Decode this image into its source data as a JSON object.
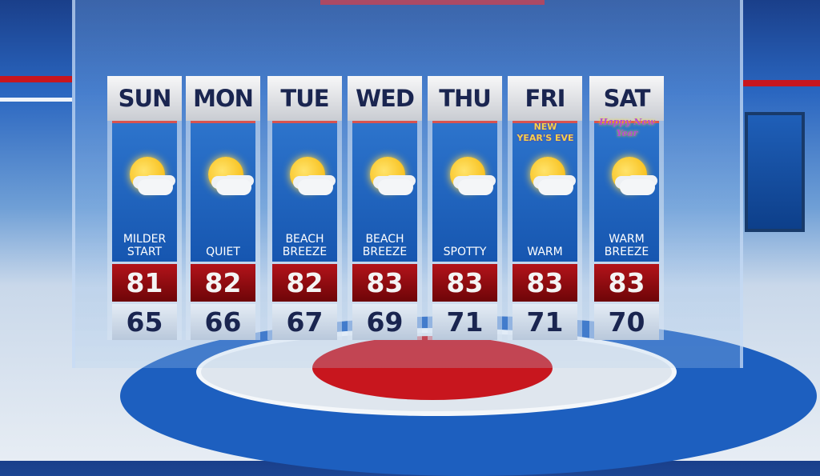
{
  "forecast": [
    {
      "day": "SUN",
      "desc1": "MILDER",
      "desc2": "START",
      "high": "81",
      "low": "65",
      "icon": "sun-cloud-icon",
      "badge": ""
    },
    {
      "day": "MON",
      "desc1": "",
      "desc2": "QUIET",
      "high": "82",
      "low": "66",
      "icon": "sun-cloud-icon",
      "badge": ""
    },
    {
      "day": "TUE",
      "desc1": "BEACH",
      "desc2": "BREEZE",
      "high": "82",
      "low": "67",
      "icon": "sun-cloud-icon",
      "badge": ""
    },
    {
      "day": "WED",
      "desc1": "BEACH",
      "desc2": "BREEZE",
      "high": "83",
      "low": "69",
      "icon": "sun-cloud-icon",
      "badge": ""
    },
    {
      "day": "THU",
      "desc1": "",
      "desc2": "SPOTTY",
      "high": "83",
      "low": "71",
      "icon": "sun-cloud-icon",
      "badge": ""
    },
    {
      "day": "FRI",
      "desc1": "",
      "desc2": "WARM",
      "high": "83",
      "low": "71",
      "icon": "sun-cloud-icon",
      "badge": "NEW YEAR'S EVE"
    },
    {
      "day": "SAT",
      "desc1": "WARM",
      "desc2": "BREEZE",
      "high": "83",
      "low": "70",
      "icon": "sun-cloud-icon",
      "badge": "Happy New Year"
    }
  ],
  "colors": {
    "high_bg": "#b3131a",
    "low_text": "#1a2550",
    "panel": "#2d74cc"
  }
}
